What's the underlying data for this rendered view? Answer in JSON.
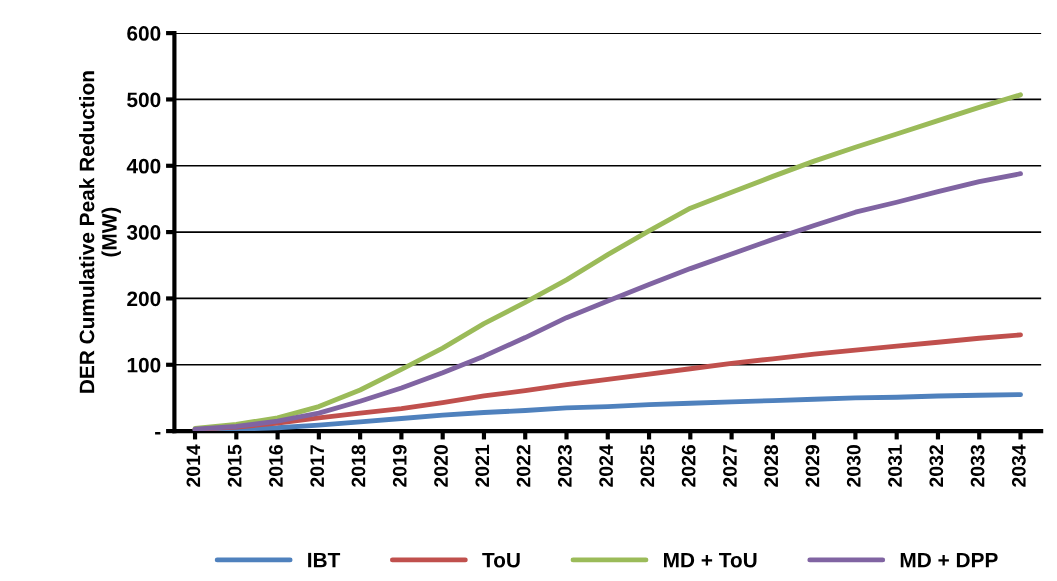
{
  "chart_data": {
    "type": "line",
    "ylabel": "DER Cumulative Peak Reduction\n(MW)",
    "categories": [
      "2014",
      "2015",
      "2016",
      "2017",
      "2018",
      "2019",
      "2020",
      "2021",
      "2022",
      "2023",
      "2024",
      "2025",
      "2026",
      "2027",
      "2028",
      "2029",
      "2030",
      "2031",
      "2032",
      "2033",
      "2034"
    ],
    "series": [
      {
        "name": "IBT",
        "color": "#4f81bd",
        "values": [
          2,
          3,
          5,
          9,
          14,
          19,
          24,
          28,
          31,
          35,
          37,
          40,
          42,
          44,
          46,
          48,
          50,
          51,
          53,
          54,
          55
        ]
      },
      {
        "name": "ToU",
        "color": "#c0504d",
        "values": [
          3,
          6,
          12,
          20,
          27,
          34,
          43,
          53,
          61,
          70,
          78,
          86,
          94,
          102,
          109,
          116,
          122,
          128,
          134,
          140,
          145
        ]
      },
      {
        "name": "MD + ToU",
        "color": "#9bbb59",
        "values": [
          4,
          10,
          20,
          37,
          62,
          93,
          125,
          162,
          194,
          228,
          266,
          302,
          336,
          360,
          384,
          407,
          428,
          448,
          468,
          488,
          507
        ]
      },
      {
        "name": "MD + DPP",
        "color": "#8064a2",
        "values": [
          3,
          7,
          15,
          27,
          45,
          65,
          88,
          113,
          141,
          171,
          196,
          221,
          245,
          267,
          289,
          310,
          330,
          345,
          361,
          376,
          388
        ]
      }
    ],
    "ylim": [
      0,
      600
    ],
    "yticks": [
      {
        "value": 0,
        "label": "-"
      },
      100,
      200,
      300,
      400,
      500,
      600
    ],
    "grid": "y",
    "legend": "bottom",
    "marker": "none",
    "line_style": "solid"
  }
}
